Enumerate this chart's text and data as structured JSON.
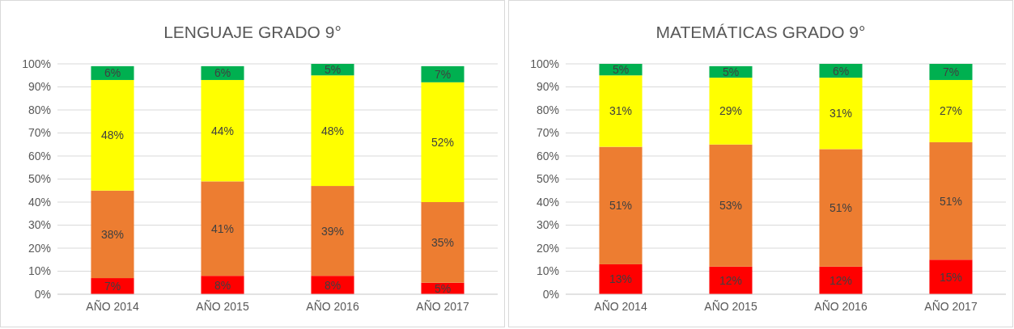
{
  "chart_data": [
    {
      "type": "bar",
      "title": "LENGUAJE GRADO 9°",
      "stacked": true,
      "grid": "y",
      "categories": [
        "AÑO 2014",
        "AÑO 2015",
        "AÑO 2016",
        "AÑO 2017"
      ],
      "series": [
        {
          "color": "#ff0000",
          "values": [
            7,
            8,
            8,
            5
          ],
          "value_labels": [
            "7%",
            "8%",
            "8%",
            "5%"
          ]
        },
        {
          "color": "#ed7d31",
          "values": [
            38,
            41,
            39,
            35
          ],
          "value_labels": [
            "38%",
            "41%",
            "39%",
            "35%"
          ]
        },
        {
          "color": "#ffff00",
          "values": [
            48,
            44,
            48,
            52
          ],
          "value_labels": [
            "48%",
            "44%",
            "48%",
            "52%"
          ]
        },
        {
          "color": "#00b050",
          "values": [
            6,
            6,
            5,
            7
          ],
          "value_labels": [
            "6%",
            "6%",
            "5%",
            "7%"
          ]
        }
      ],
      "ylim": [
        0,
        100
      ],
      "yticks": [
        {
          "value": 0,
          "label": "0%"
        },
        {
          "value": 10,
          "label": "10%"
        },
        {
          "value": 20,
          "label": "20%"
        },
        {
          "value": 30,
          "label": "30%"
        },
        {
          "value": 40,
          "label": "40%"
        },
        {
          "value": 50,
          "label": "50%"
        },
        {
          "value": 60,
          "label": "60%"
        },
        {
          "value": 70,
          "label": "70%"
        },
        {
          "value": 80,
          "label": "80%"
        },
        {
          "value": 90,
          "label": "90%"
        },
        {
          "value": 100,
          "label": "100%"
        }
      ]
    },
    {
      "type": "bar",
      "title": "MATEMÁTICAS GRADO 9°",
      "stacked": true,
      "grid": "y",
      "categories": [
        "AÑO 2014",
        "AÑO 2015",
        "AÑO 2016",
        "AÑO 2017"
      ],
      "series": [
        {
          "color": "#ff0000",
          "values": [
            13,
            12,
            12,
            15
          ],
          "value_labels": [
            "13%",
            "12%",
            "12%",
            "15%"
          ]
        },
        {
          "color": "#ed7d31",
          "values": [
            51,
            53,
            51,
            51
          ],
          "value_labels": [
            "51%",
            "53%",
            "51%",
            "51%"
          ]
        },
        {
          "color": "#ffff00",
          "values": [
            31,
            29,
            31,
            27
          ],
          "value_labels": [
            "31%",
            "29%",
            "31%",
            "27%"
          ]
        },
        {
          "color": "#00b050",
          "values": [
            5,
            5,
            6,
            7
          ],
          "value_labels": [
            "5%",
            "5%",
            "6%",
            "7%"
          ]
        }
      ],
      "ylim": [
        0,
        100
      ],
      "yticks": [
        {
          "value": 0,
          "label": "0%"
        },
        {
          "value": 10,
          "label": "10%"
        },
        {
          "value": 20,
          "label": "20%"
        },
        {
          "value": 30,
          "label": "30%"
        },
        {
          "value": 40,
          "label": "40%"
        },
        {
          "value": 50,
          "label": "50%"
        },
        {
          "value": 60,
          "label": "60%"
        },
        {
          "value": 70,
          "label": "70%"
        },
        {
          "value": 80,
          "label": "80%"
        },
        {
          "value": 90,
          "label": "90%"
        },
        {
          "value": 100,
          "label": "100%"
        }
      ]
    }
  ]
}
